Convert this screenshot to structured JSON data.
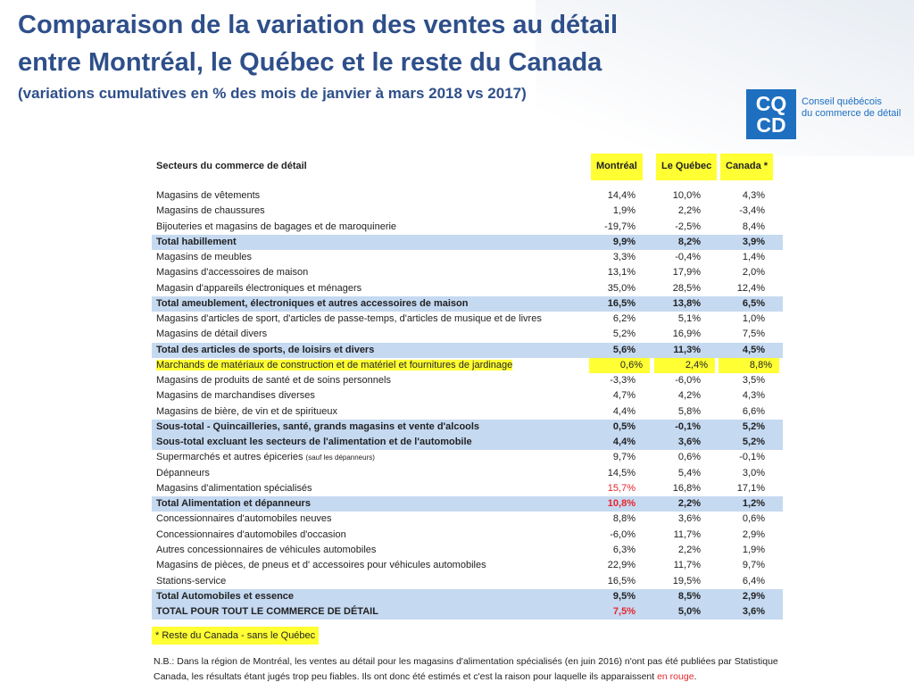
{
  "header": {
    "title_line1": "Comparaison de la variation des ventes au détail",
    "title_line2": "entre Montréal, le Québec et le reste du Canada",
    "subtitle": "(variations cumulatives en % des mois de janvier à mars 2018 vs 2017)"
  },
  "logo": {
    "letters_top": "CQ",
    "letters_bottom": "CD",
    "line1": "Conseil québécois",
    "line2": "du commerce de détail"
  },
  "table": {
    "columns": [
      "Secteurs du commerce de détail",
      "Montréal",
      "Le Québec",
      "Canada *"
    ],
    "rows": [
      {
        "cells": [
          "Magasins de vêtements",
          "14,4%",
          "10,0%",
          "4,3%"
        ]
      },
      {
        "cells": [
          "Magasins de chaussures",
          "1,9%",
          "2,2%",
          "-3,4%"
        ]
      },
      {
        "cells": [
          "Bijouteries et magasins de bagages et de maroquinerie",
          "-19,7%",
          "-2,5%",
          "8,4%"
        ]
      },
      {
        "cells": [
          "Total habillement",
          "9,9%",
          "8,2%",
          "3,9%"
        ],
        "total": true
      },
      {
        "cells": [
          "Magasins de meubles",
          "3,3%",
          "-0,4%",
          "1,4%"
        ]
      },
      {
        "cells": [
          "Magasins d'accessoires de maison",
          "13,1%",
          "17,9%",
          "2,0%"
        ]
      },
      {
        "cells": [
          "Magasin d'appareils électroniques et ménagers",
          "35,0%",
          "28,5%",
          "12,4%"
        ]
      },
      {
        "cells": [
          "Total ameublement, électroniques et autres accessoires de maison",
          "16,5%",
          "13,8%",
          "6,5%"
        ],
        "total": true
      },
      {
        "cells": [
          "Magasins d'articles de sport, d'articles de passe-temps, d'articles de musique et de livres",
          "6,2%",
          "5,1%",
          "1,0%"
        ]
      },
      {
        "cells": [
          "Magasins de détail divers",
          "5,2%",
          "16,9%",
          "7,5%"
        ]
      },
      {
        "cells": [
          "Total des articles de sports, de loisirs et divers",
          "5,6%",
          "11,3%",
          "4,5%"
        ],
        "total": true
      },
      {
        "cells": [
          "Marchands de matériaux de construction et de matériel et fournitures de jardinage",
          "0,6%",
          "2,4%",
          "8,8%"
        ],
        "highlight": true
      },
      {
        "cells": [
          "Magasins de produits de santé et de soins personnels",
          "-3,3%",
          "-6,0%",
          "3,5%"
        ]
      },
      {
        "cells": [
          "Magasins de marchandises diverses",
          "4,7%",
          "4,2%",
          "4,3%"
        ]
      },
      {
        "cells": [
          "Magasins de bière, de vin et de spiritueux",
          "4,4%",
          "5,8%",
          "6,6%"
        ]
      },
      {
        "cells": [
          "Sous-total - Quincailleries, santé, grands magasins et vente d'alcools",
          "0,5%",
          "-0,1%",
          "5,2%"
        ],
        "total": true
      },
      {
        "cells": [
          "Sous-total excluant les secteurs de l'alimentation et de l'automobile",
          "4,4%",
          "3,6%",
          "5,2%"
        ],
        "total": true
      },
      {
        "cells": [
          "Supermarchés et autres épiceries",
          "9,7%",
          "0,6%",
          "-0,1%"
        ],
        "note": "(sauf les dépanneurs)"
      },
      {
        "cells": [
          "Dépanneurs",
          "14,5%",
          "5,4%",
          "3,0%"
        ]
      },
      {
        "cells": [
          "Magasins d'alimentation spécialisés",
          "15,7%",
          "16,8%",
          "17,1%"
        ],
        "red": true
      },
      {
        "cells": [
          "Total Alimentation et dépanneurs",
          "10,8%",
          "2,2%",
          "1,2%"
        ],
        "total": true,
        "red": true
      },
      {
        "cells": [
          "Concessionnaires d'automobiles neuves",
          "8,8%",
          "3,6%",
          "0,6%"
        ]
      },
      {
        "cells": [
          "Concessionnaires d'automobiles d'occasion",
          "-6,0%",
          "11,7%",
          "2,9%"
        ]
      },
      {
        "cells": [
          "Autres concessionnaires de véhicules automobiles",
          "6,3%",
          "2,2%",
          "1,9%"
        ]
      },
      {
        "cells": [
          "Magasins de pièces, de pneus et d' accessoires pour véhicules automobiles",
          "22,9%",
          "11,7%",
          "9,7%"
        ]
      },
      {
        "cells": [
          "Stations-service",
          "16,5%",
          "19,5%",
          "6,4%"
        ]
      },
      {
        "cells": [
          "Total Automobiles et essence",
          "9,5%",
          "8,5%",
          "2,9%"
        ],
        "total": true
      },
      {
        "cells": [
          "TOTAL POUR TOUT LE COMMERCE DE DÉTAIL",
          "7,5%",
          "5,0%",
          "3,6%"
        ],
        "total": true,
        "red": true
      }
    ]
  },
  "footnote": "* Reste du Canada - sans le Québec",
  "nb": {
    "text": "N.B.: Dans la région de Montréal, les ventes au détail pour les magasins d'alimentation spécialisés (en juin 2016) n'ont pas été publiées par Statistique Canada, les résultats étant jugés trop peu fiables. Ils ont donc été estimés et c'est la raison pour laquelle ils apparaissent ",
    "red_text": "en rouge",
    "end": "."
  }
}
